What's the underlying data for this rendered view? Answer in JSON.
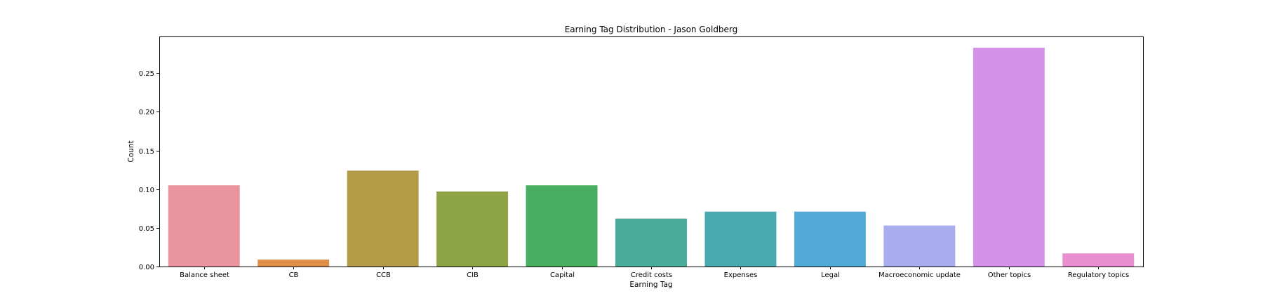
{
  "chart_data": {
    "type": "bar",
    "title": "Earning Tag Distribution - Jason Goldberg",
    "xlabel": "Earning Tag",
    "ylabel": "Count",
    "ylim": [
      0,
      0.2975
    ],
    "yticks": [
      0.0,
      0.05,
      0.1,
      0.15,
      0.2,
      0.25
    ],
    "ytick_labels": [
      "0.00",
      "0.05",
      "0.10",
      "0.15",
      "0.20",
      "0.25"
    ],
    "grid": false,
    "legend": "none",
    "categories": [
      "Balance sheet",
      "CB",
      "CCB",
      "CIB",
      "Capital",
      "Credit costs",
      "Expenses",
      "Legal",
      "Macroeconomic update",
      "Other topics",
      "Regulatory topics"
    ],
    "values": [
      0.105,
      0.009,
      0.124,
      0.097,
      0.105,
      0.062,
      0.071,
      0.071,
      0.053,
      0.283,
      0.017
    ],
    "colors": [
      "#e9949e",
      "#df8e4c",
      "#b39b47",
      "#8ea343",
      "#48ae62",
      "#4aab98",
      "#4baab0",
      "#54aad6",
      "#a8aded",
      "#d492e8",
      "#e98fcf"
    ]
  }
}
